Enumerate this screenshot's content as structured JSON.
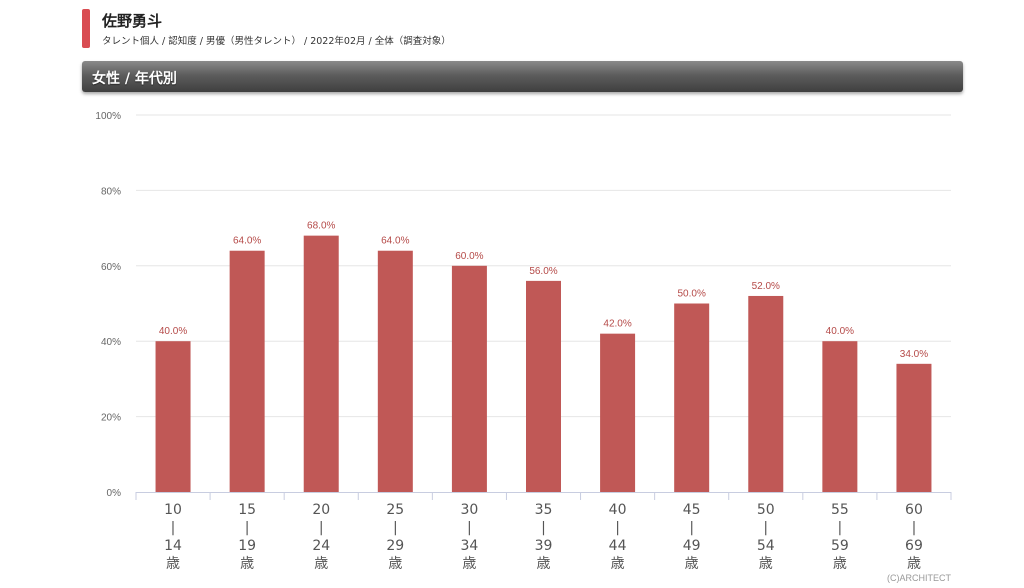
{
  "header": {
    "title": "佐野勇斗",
    "subtitle": "タレント個人 / 認知度 / 男優（男性タレント） / 2022年02月 / 全体（調査対象）"
  },
  "section": {
    "title": "女性 / 年代別"
  },
  "colors": {
    "accent": "#d94c52",
    "bar": "#c05856",
    "label": "#b54a48"
  },
  "chart_data": {
    "type": "bar",
    "categories": [
      [
        "10",
        "|",
        "14",
        "歳"
      ],
      [
        "15",
        "|",
        "19",
        "歳"
      ],
      [
        "20",
        "|",
        "24",
        "歳"
      ],
      [
        "25",
        "|",
        "29",
        "歳"
      ],
      [
        "30",
        "|",
        "34",
        "歳"
      ],
      [
        "35",
        "|",
        "39",
        "歳"
      ],
      [
        "40",
        "|",
        "44",
        "歳"
      ],
      [
        "45",
        "|",
        "49",
        "歳"
      ],
      [
        "50",
        "|",
        "54",
        "歳"
      ],
      [
        "55",
        "|",
        "59",
        "歳"
      ],
      [
        "60",
        "|",
        "69",
        "歳"
      ]
    ],
    "values": [
      40.0,
      64.0,
      68.0,
      64.0,
      60.0,
      56.0,
      42.0,
      50.0,
      52.0,
      40.0,
      34.0
    ],
    "data_labels": [
      "40.0%",
      "64.0%",
      "68.0%",
      "64.0%",
      "60.0%",
      "56.0%",
      "42.0%",
      "50.0%",
      "52.0%",
      "40.0%",
      "34.0%"
    ],
    "yticks": [
      "0%",
      "20%",
      "40%",
      "60%",
      "80%",
      "100%"
    ],
    "ylim": [
      0,
      100
    ],
    "grid": true
  },
  "footer": {
    "copyright": "(C)ARCHITECT"
  }
}
